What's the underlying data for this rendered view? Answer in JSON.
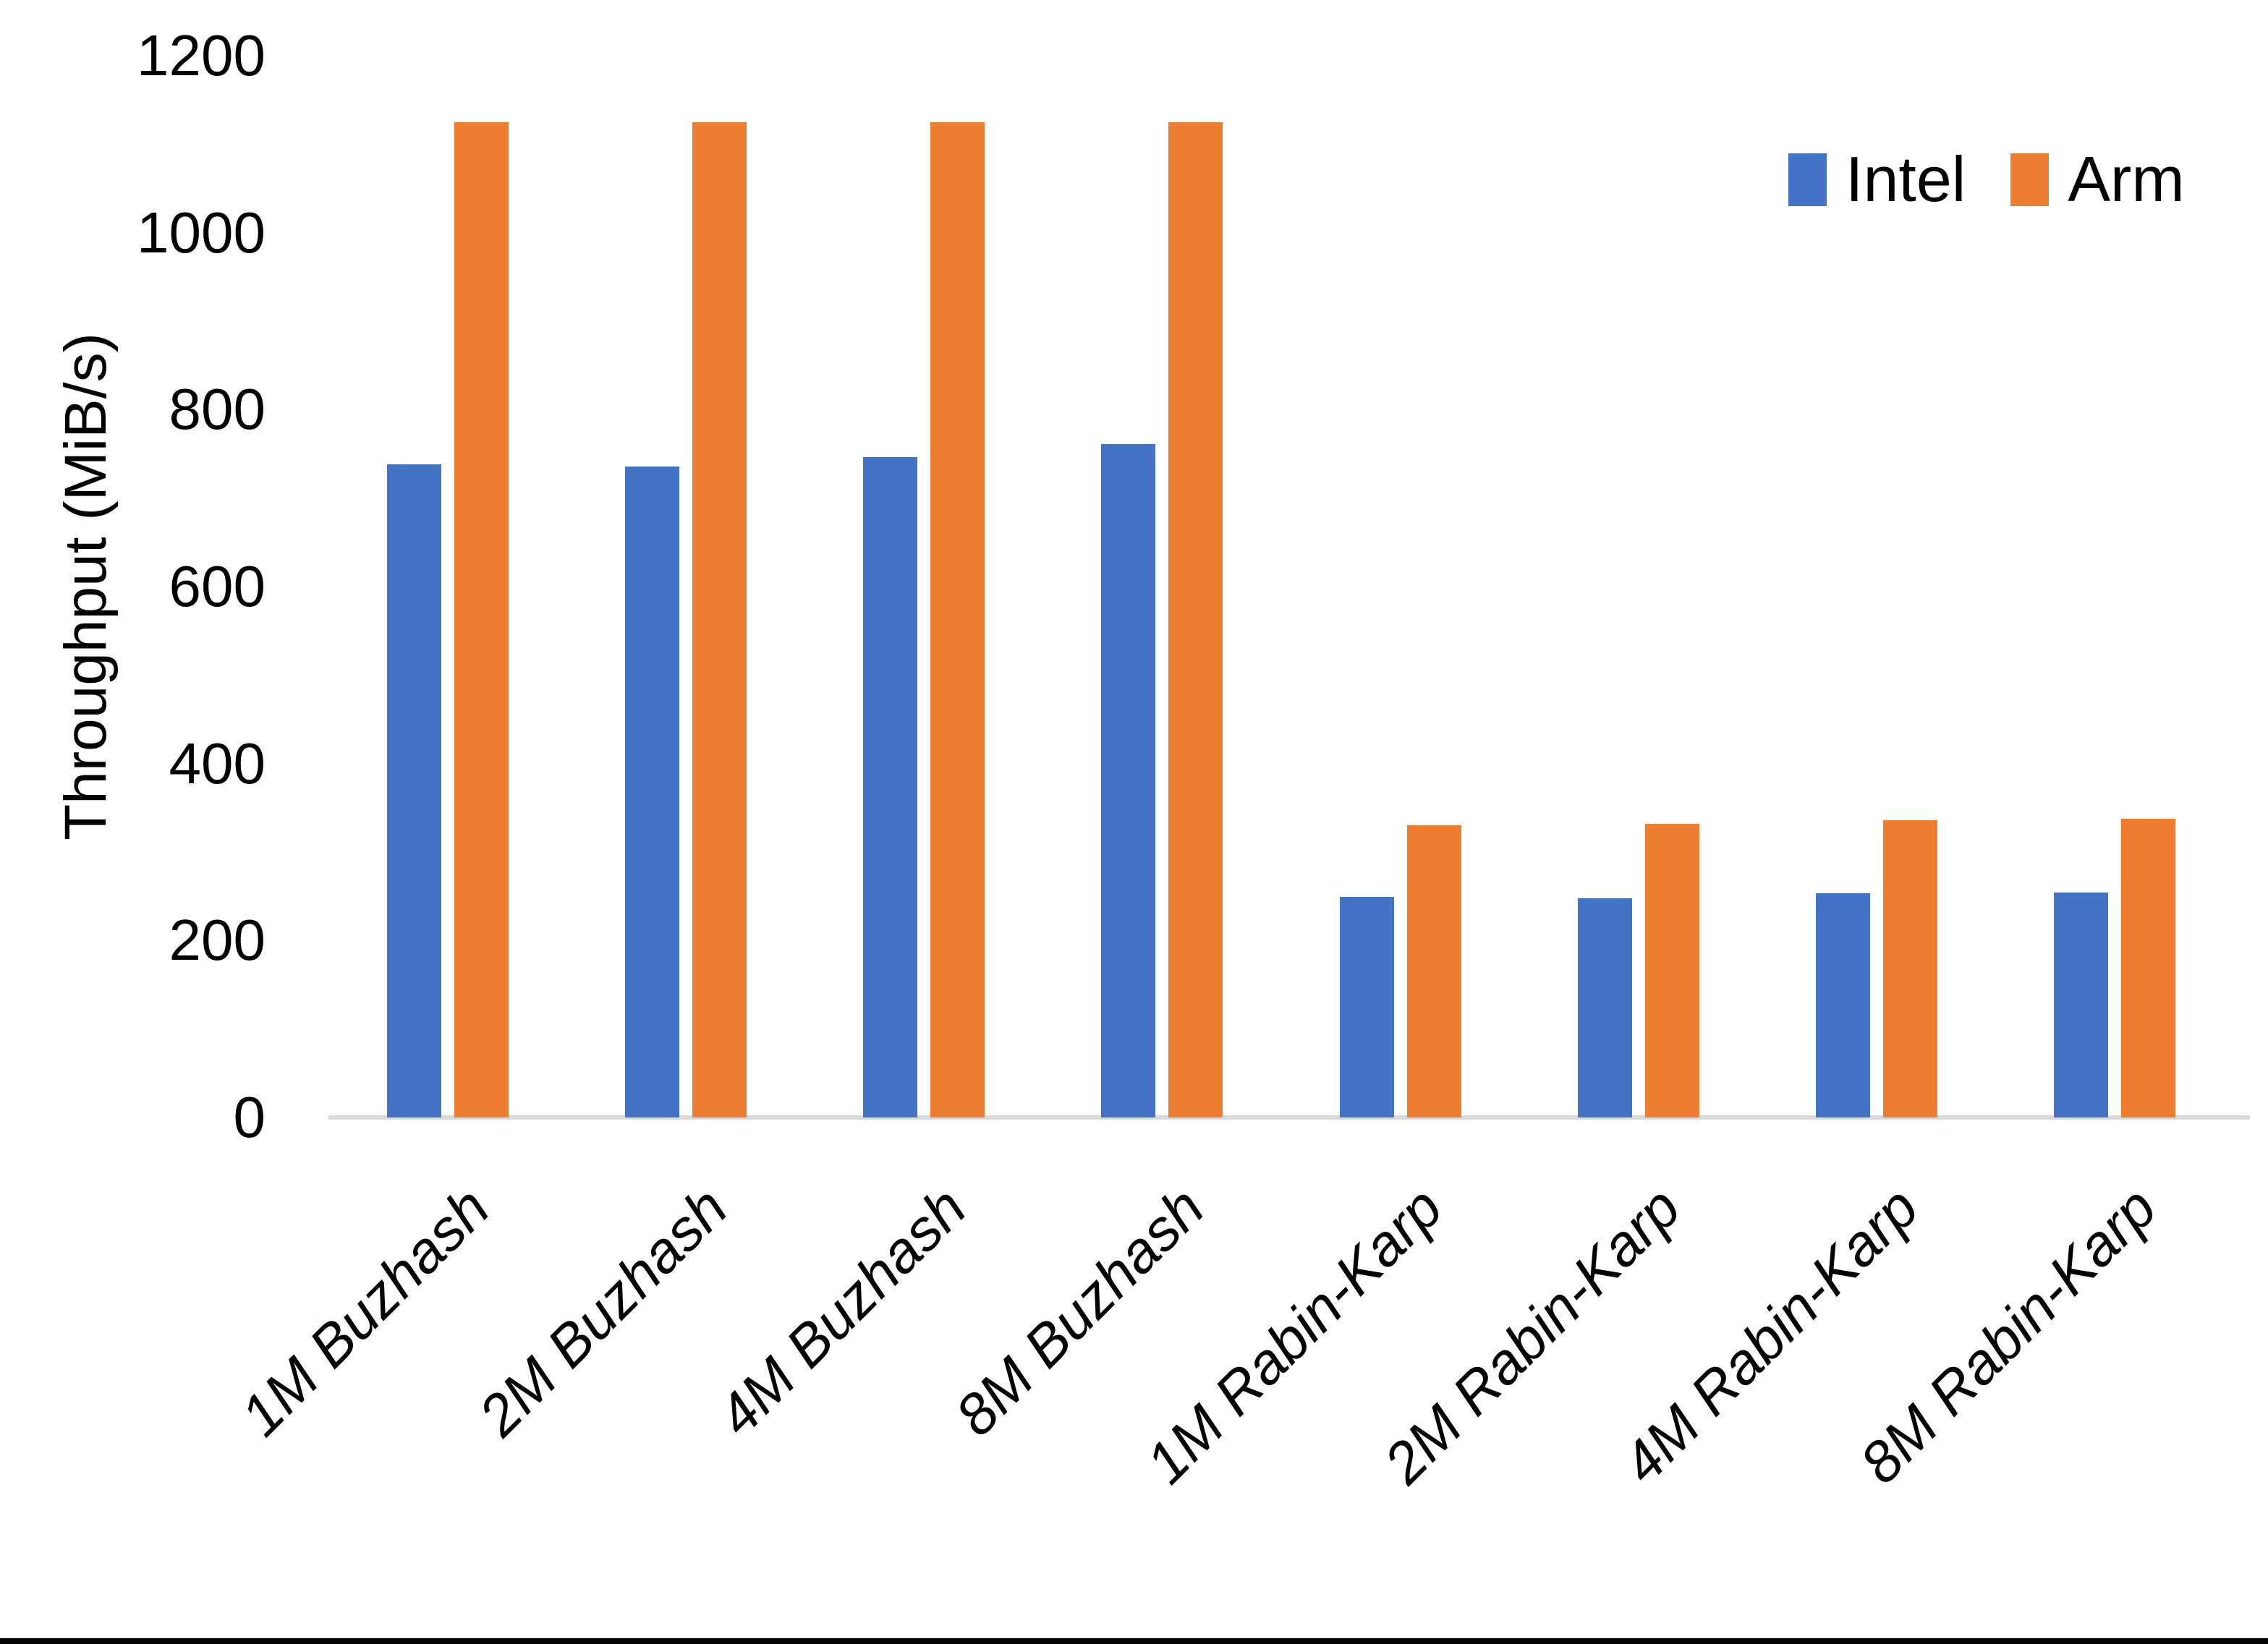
{
  "chart_data": {
    "type": "bar",
    "title": "",
    "xlabel": "",
    "ylabel": "Throughput (MiB/s)",
    "ylim": [
      0,
      1200
    ],
    "yticks": [
      0,
      200,
      400,
      600,
      800,
      1000,
      1200
    ],
    "grid": false,
    "legend_position": "top-right",
    "axis_line_color": "#D9D9D9",
    "text_color": "#000000",
    "categories": [
      "1M Buzhash",
      "2M Buzhash",
      "4M Buzhash",
      "8M Buzhash",
      "1M Rabin-Karp",
      "2M Rabin-Karp",
      "4M Rabin-Karp",
      "8M Rabin-Karp"
    ],
    "series": [
      {
        "name": "Intel",
        "color": "#4472C4",
        "values": [
          738,
          736,
          746,
          761,
          249,
          248,
          253,
          254
        ]
      },
      {
        "name": "Arm",
        "color": "#ED7D31",
        "values": [
          1125,
          1125,
          1125,
          1125,
          330,
          332,
          336,
          338
        ]
      }
    ]
  }
}
